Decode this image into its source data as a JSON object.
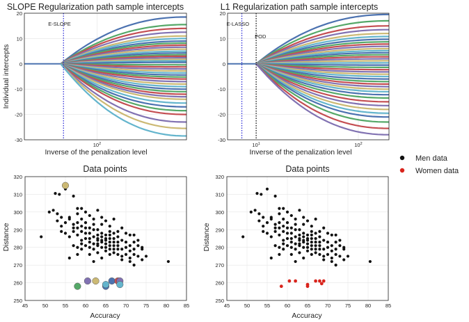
{
  "colors": {
    "palette": [
      "#4c72b0",
      "#55a868",
      "#c44e52",
      "#8172b2",
      "#ccb974",
      "#64b5cd"
    ],
    "men": "#111111",
    "women": "#d9241c",
    "vline_blue": "#1f1fd6",
    "vline_black": "#000000"
  },
  "chart_data": [
    {
      "type": "line",
      "title": "SLOPE Regularization path sample intercepts",
      "xlabel": "Inverse of the penalization level",
      "ylabel": "Individual intercepts",
      "xscale": "log",
      "xlim_log10": [
        1.48,
        2.64
      ],
      "xticks": [
        {
          "label": "10",
          "exp": "2",
          "log10": 2
        }
      ],
      "ylim": [
        -30,
        20
      ],
      "yticks": [
        -30,
        -20,
        -10,
        0,
        10,
        20
      ],
      "grid": true,
      "series_note": "many intercept paths start at 0 and diverge after the activation point",
      "vlines": [
        {
          "label": "E-SLOPE",
          "log10": 1.76,
          "color": "blue",
          "style": "dotted"
        }
      ],
      "paths_start_log10": 1.74,
      "path_end_values": [
        18.5,
        15.5,
        14,
        12.5,
        11,
        10,
        9,
        8.2,
        7.4,
        6.6,
        5.8,
        5,
        4.3,
        3.6,
        3,
        2.4,
        1.8,
        1.2,
        0.6,
        -0.4,
        -1.2,
        -2,
        -2.8,
        -3.6,
        -4.4,
        -5.2,
        -6,
        -7,
        -8,
        -9,
        -10,
        -11,
        -12,
        -13,
        -14,
        -15.5,
        -17,
        -18.5,
        -20,
        -23,
        -25.5,
        -28.5
      ]
    },
    {
      "type": "line",
      "title": "L1 Regularization path sample intercepts",
      "xlabel": "Inverse of the penalization level",
      "ylabel": "",
      "xscale": "log",
      "xlim_log10": [
        0.72,
        2.3
      ],
      "xticks": [
        {
          "label": "10",
          "exp": "1",
          "log10": 1
        },
        {
          "label": "10",
          "exp": "2",
          "log10": 2
        }
      ],
      "ylim": [
        -30,
        20
      ],
      "yticks": [
        -30,
        -20,
        -10,
        0,
        10,
        20
      ],
      "grid": true,
      "vlines": [
        {
          "label": "E-LASSO",
          "log10": 0.86,
          "color": "blue",
          "style": "dotted"
        },
        {
          "label": "POD",
          "log10": 1.0,
          "color": "black",
          "style": "dotted"
        }
      ],
      "paths_start_log10": 1.0,
      "path_end_values": [
        19.5,
        17,
        15,
        13.5,
        12,
        10.8,
        9.7,
        8.7,
        7.8,
        6.9,
        6,
        5.2,
        4.4,
        3.6,
        2.8,
        2,
        1.2,
        0.4,
        -0.5,
        -1.4,
        -2.3,
        -3.2,
        -4.1,
        -5,
        -6,
        -7,
        -8,
        -9,
        -10,
        -11,
        -12.2,
        -13.5,
        -15,
        -16.5,
        -18,
        -19.5,
        -21,
        -23,
        -25.5,
        -28
      ]
    },
    {
      "type": "scatter",
      "title": "Data points",
      "xlabel": "Accuracy",
      "ylabel": "Distance",
      "xlim": [
        45,
        85
      ],
      "ylim": [
        250,
        320
      ],
      "xticks": [
        45,
        50,
        55,
        60,
        65,
        70,
        75,
        80,
        85
      ],
      "yticks": [
        250,
        260,
        270,
        280,
        290,
        300,
        310,
        320
      ],
      "grid": true,
      "series": [
        {
          "name": "Men data",
          "points": [
            [
              49,
              286
            ],
            [
              51,
              300
            ],
            [
              52.5,
              310.5
            ],
            [
              53.5,
              310
            ],
            [
              55,
              313
            ],
            [
              57,
              309
            ],
            [
              58,
              302
            ],
            [
              59,
              296
            ],
            [
              52,
              301
            ],
            [
              53,
              299
            ],
            [
              54,
              297
            ],
            [
              55,
              294
            ],
            [
              56,
              297
            ],
            [
              57,
              293
            ],
            [
              58,
              299
            ],
            [
              59,
              302
            ],
            [
              60,
              300
            ],
            [
              61,
              298
            ],
            [
              62,
              296
            ],
            [
              63,
              301
            ],
            [
              64,
              297
            ],
            [
              53,
              295
            ],
            [
              54,
              292
            ],
            [
              56,
              296
            ],
            [
              57,
              291
            ],
            [
              58,
              294
            ],
            [
              59,
              289
            ],
            [
              60,
              294
            ],
            [
              61,
              291
            ],
            [
              62,
              293
            ],
            [
              63,
              290
            ],
            [
              64,
              293
            ],
            [
              65,
              295
            ],
            [
              66,
              292
            ],
            [
              67,
              296
            ],
            [
              68,
              289
            ],
            [
              69,
              291
            ],
            [
              58,
              287
            ],
            [
              59,
              284
            ],
            [
              60,
              288
            ],
            [
              61,
              285
            ],
            [
              62,
              286
            ],
            [
              63,
              284
            ],
            [
              64,
              288
            ],
            [
              65,
              285
            ],
            [
              66,
              287
            ],
            [
              67,
              283
            ],
            [
              68,
              286
            ],
            [
              69,
              284
            ],
            [
              70,
              288
            ],
            [
              71,
              287
            ],
            [
              72,
              287
            ],
            [
              57,
              281
            ],
            [
              58,
              280
            ],
            [
              59,
              282
            ],
            [
              60,
              281
            ],
            [
              61,
              283
            ],
            [
              62,
              279
            ],
            [
              63,
              281
            ],
            [
              64,
              280
            ],
            [
              65,
              282
            ],
            [
              66,
              281
            ],
            [
              67,
              279
            ],
            [
              68,
              281
            ],
            [
              69,
              279
            ],
            [
              70,
              280
            ],
            [
              71,
              278
            ],
            [
              72,
              279
            ],
            [
              73,
              281
            ],
            [
              61,
              276
            ],
            [
              63,
              277
            ],
            [
              65,
              278
            ],
            [
              66,
              276
            ],
            [
              67,
              277
            ],
            [
              68,
              276
            ],
            [
              69,
              275
            ],
            [
              70,
              276
            ],
            [
              71,
              274
            ],
            [
              72,
              276
            ],
            [
              73,
              275
            ],
            [
              74,
              279
            ],
            [
              75,
              275
            ],
            [
              69,
              273
            ],
            [
              71,
              272
            ],
            [
              72,
              270
            ],
            [
              74,
              273
            ],
            [
              64,
              283
            ],
            [
              65,
              284
            ],
            [
              66,
              283
            ],
            [
              67,
              285
            ],
            [
              68,
              283
            ],
            [
              65,
              287
            ],
            [
              66,
              289
            ],
            [
              64,
              286
            ],
            [
              63,
              287
            ],
            [
              62,
              290
            ],
            [
              61,
              288
            ],
            [
              60,
              291
            ],
            [
              59,
              292
            ],
            [
              58,
              291
            ],
            [
              57,
              289
            ],
            [
              56,
              286
            ],
            [
              55,
              288
            ],
            [
              54,
              289
            ],
            [
              56,
              274
            ],
            [
              80.5,
              272
            ],
            [
              70,
              283
            ],
            [
              71,
              281
            ],
            [
              72,
              283
            ],
            [
              73,
              284
            ],
            [
              74,
              280
            ],
            [
              62,
              272
            ],
            [
              64,
              274
            ],
            [
              66,
              279
            ],
            [
              67,
              281
            ],
            [
              68,
              279
            ],
            [
              65,
              280
            ],
            [
              63,
              282
            ],
            [
              62,
              282
            ],
            [
              60,
              285
            ],
            [
              67,
              288
            ],
            [
              66,
              285
            ],
            [
              64,
              284
            ],
            [
              63,
              285
            ],
            [
              61,
              280
            ],
            [
              59,
              279
            ],
            [
              58,
              276
            ]
          ]
        }
      ],
      "highlight_points": [
        {
          "x": 55,
          "y": 315,
          "color": "#ccb974"
        },
        {
          "x": 58,
          "y": 258,
          "color": "#55a868"
        },
        {
          "x": 60.5,
          "y": 261,
          "color": "#8172b2"
        },
        {
          "x": 62.5,
          "y": 261,
          "color": "#ccb974"
        },
        {
          "x": 65,
          "y": 258,
          "color": "#4c72b0"
        },
        {
          "x": 65,
          "y": 259,
          "color": "#64b5cd"
        },
        {
          "x": 66.5,
          "y": 261,
          "color": "#4c72b0"
        },
        {
          "x": 68,
          "y": 261,
          "color": "#c44e52"
        },
        {
          "x": 68.5,
          "y": 261,
          "color": "#8172b2"
        },
        {
          "x": 68.5,
          "y": 259,
          "color": "#64b5cd"
        }
      ]
    },
    {
      "type": "scatter",
      "title": "Data points",
      "xlabel": "Accuracy",
      "ylabel": "Distance",
      "xlim": [
        45,
        85
      ],
      "ylim": [
        250,
        320
      ],
      "xticks": [
        45,
        50,
        55,
        60,
        65,
        70,
        75,
        80,
        85
      ],
      "yticks": [
        250,
        260,
        270,
        280,
        290,
        300,
        310,
        320
      ],
      "grid": true,
      "series": [
        {
          "name": "Men data",
          "points_same_as_panel": 3
        },
        {
          "name": "Women data",
          "points": [
            [
              58.5,
              258
            ],
            [
              60.5,
              261
            ],
            [
              62,
              261
            ],
            [
              65,
              258
            ],
            [
              65,
              259
            ],
            [
              67,
              261
            ],
            [
              68,
              261
            ],
            [
              68.5,
              259.5
            ],
            [
              69,
              261
            ]
          ]
        }
      ]
    }
  ],
  "legend": {
    "placement": "right",
    "items": [
      {
        "label": "Men data",
        "color": "#111111"
      },
      {
        "label": "Women data",
        "color": "#d9241c"
      }
    ]
  }
}
